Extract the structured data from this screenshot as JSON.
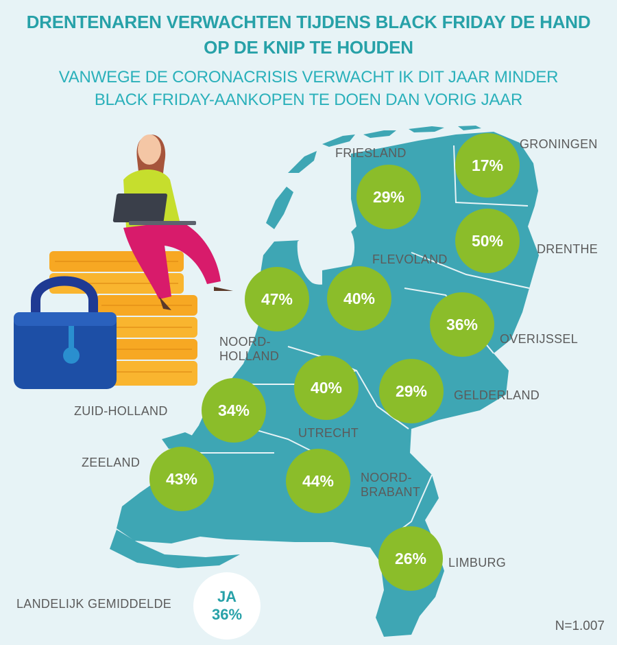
{
  "title_lines": [
    "DRENTENAREN VERWACHTEN TIJDENS BLACK FRIDAY DE HAND",
    "OP DE KNIP TE HOUDEN"
  ],
  "subtitle_lines": [
    "VANWEGE DE CORONACRISIS VERWACHT IK DIT JAAR MINDER",
    "BLACK FRIDAY-AANKOPEN TE DOEN DAN VORIG JAAR"
  ],
  "provinces": [
    {
      "name": "GRONINGEN",
      "value": "17%"
    },
    {
      "name": "FRIESLAND",
      "value": "29%"
    },
    {
      "name": "DRENTHE",
      "value": "50%"
    },
    {
      "name": "FLEVOLAND",
      "value": "40%"
    },
    {
      "name": "NOORD-HOLLAND",
      "name_lines": [
        "NOORD-",
        "HOLLAND"
      ],
      "value": "47%"
    },
    {
      "name": "OVERIJSSEL",
      "value": "36%"
    },
    {
      "name": "UTRECHT",
      "value": "40%"
    },
    {
      "name": "GELDERLAND",
      "value": "29%"
    },
    {
      "name": "ZUID-HOLLAND",
      "value": "34%"
    },
    {
      "name": "ZEELAND",
      "value": "43%"
    },
    {
      "name": "NOORD-BRABANT",
      "name_lines": [
        "NOORD-",
        "BRABANT"
      ],
      "value": "44%"
    },
    {
      "name": "LIMBURG",
      "value": "26%"
    }
  ],
  "national_average": {
    "label": "LANDELIJK GEMIDDELDE",
    "answer": "JA",
    "value": "36%"
  },
  "sample_size": "N=1.007",
  "colors": {
    "title": "#27a1a8",
    "subtitle": "#2ab0ba",
    "map": "#3ea6b4",
    "bubble": "#8bbd2a",
    "background": "#e7f3f6"
  },
  "illustration": {
    "icons": [
      "woman-with-laptop-icon",
      "coin-stacks-icon",
      "padlock-icon"
    ]
  }
}
